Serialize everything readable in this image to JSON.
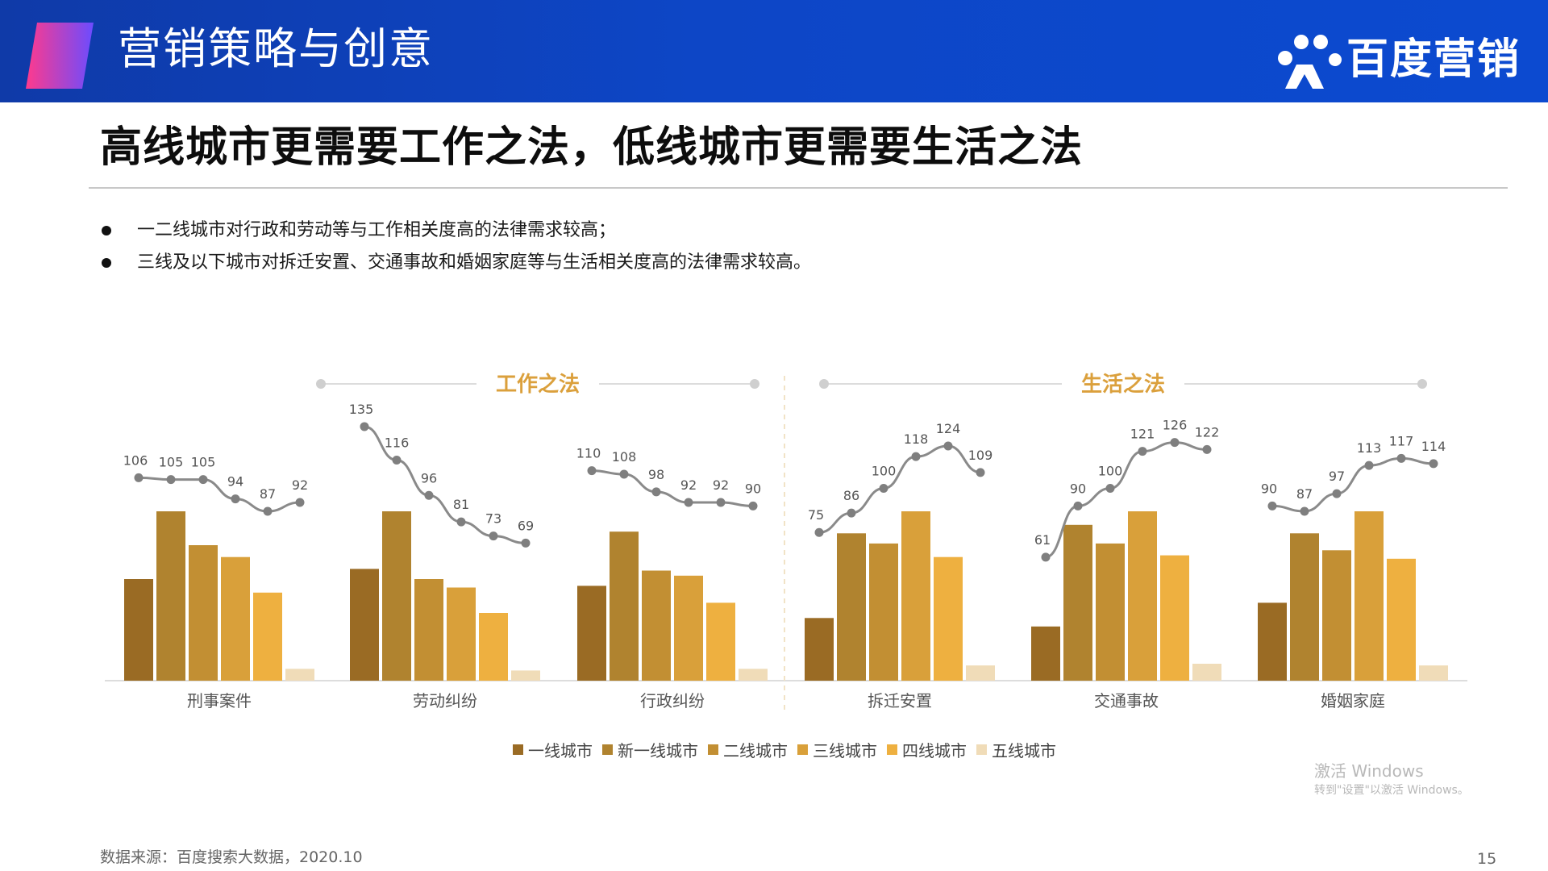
{
  "header": {
    "title": "营销策略与创意",
    "logo_text": "百度营销",
    "accent_from": "#ff3a8c",
    "accent_to": "#6b4cff",
    "background": "#0d46c6"
  },
  "page": {
    "title": "高线城市更需要工作之法，低线城市更需要生活之法",
    "bullets": [
      "一二线城市对行政和劳动等与工作相关度高的法律需求较高；",
      "三线及以下城市对拆迁安置、交通事故和婚姻家庭等与生活相关度高的法律需求较高。"
    ]
  },
  "chart_data": {
    "type": "bar",
    "groups": [
      {
        "label": "工作之法",
        "categories": [
          "刑事案件",
          "劳动纠纷",
          "行政纠纷"
        ]
      },
      {
        "label": "生活之法",
        "categories": [
          "拆迁安置",
          "交通事故",
          "婚姻家庭"
        ]
      }
    ],
    "categories": [
      "刑事案件",
      "劳动纠纷",
      "行政纠纷",
      "拆迁安置",
      "交通事故",
      "婚姻家庭"
    ],
    "series": [
      {
        "name": "一线城市",
        "color": "#9a6b24",
        "values": [
          0.6,
          0.66,
          0.56,
          0.37,
          0.32,
          0.46
        ]
      },
      {
        "name": "新一线城市",
        "color": "#b0832f",
        "values": [
          1.0,
          1.0,
          0.88,
          0.87,
          0.92,
          0.87
        ]
      },
      {
        "name": "二线城市",
        "color": "#c28f33",
        "values": [
          0.8,
          0.6,
          0.65,
          0.81,
          0.81,
          0.77
        ]
      },
      {
        "name": "三线城市",
        "color": "#d9a03a",
        "values": [
          0.73,
          0.55,
          0.62,
          1.0,
          1.0,
          1.0
        ]
      },
      {
        "name": "四线城市",
        "color": "#eeb040",
        "values": [
          0.52,
          0.4,
          0.46,
          0.73,
          0.74,
          0.72
        ]
      },
      {
        "name": "五线城市",
        "color": "#f0dcb8",
        "values": [
          0.07,
          0.06,
          0.07,
          0.09,
          0.1,
          0.09
        ]
      }
    ],
    "line_series": {
      "color": "#8a8a8a",
      "values": [
        [
          106,
          105,
          105,
          94,
          87,
          92
        ],
        [
          135,
          116,
          96,
          81,
          73,
          69
        ],
        [
          110,
          108,
          98,
          92,
          92,
          90
        ],
        [
          75,
          86,
          100,
          118,
          124,
          109
        ],
        [
          61,
          90,
          100,
          121,
          126,
          122
        ],
        [
          90,
          87,
          97,
          113,
          117,
          114
        ]
      ],
      "labels": [
        [
          "106",
          "105",
          "105",
          "94",
          "87",
          "92"
        ],
        [
          "135",
          "116",
          "96",
          "81",
          "73",
          "69"
        ],
        [
          "110",
          "108",
          "98",
          "92",
          "92",
          "90"
        ],
        [
          "75",
          "86",
          "100",
          "118",
          "124",
          "109"
        ],
        [
          "61",
          "90",
          "100",
          "121",
          "126",
          "122"
        ],
        [
          "90",
          "87",
          "97",
          "113",
          "117",
          "114"
        ]
      ]
    },
    "group_label_color": "#dba03c",
    "legend_position": "bottom"
  },
  "watermark": {
    "line1": "激活 Windows",
    "line2": "转到\"设置\"以激活 Windows。"
  },
  "footer": {
    "source": "数据来源：百度搜索大数据，2020.10",
    "page_number": "15"
  }
}
